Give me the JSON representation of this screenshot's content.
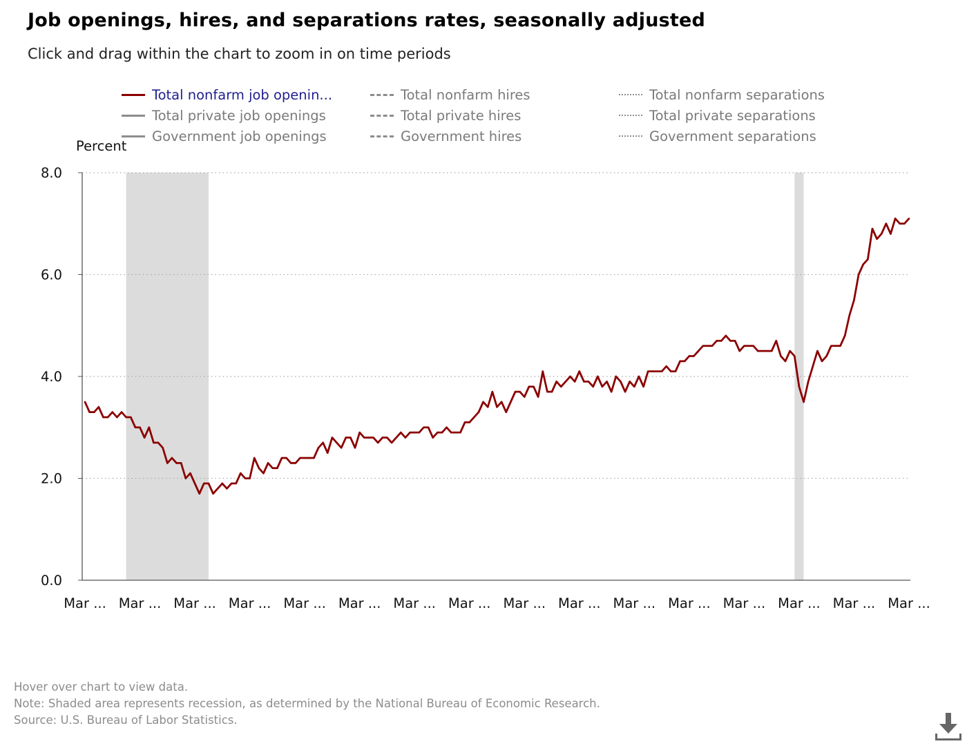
{
  "title": "Job openings, hires, and separations rates, seasonally adjusted",
  "subtitle": "Click and drag within the chart to zoom in on time periods",
  "legend": [
    {
      "label": "Total nonfarm job openin...",
      "style": "solid",
      "active": true,
      "color": "#8b0000"
    },
    {
      "label": "Total nonfarm hires",
      "style": "dashed",
      "active": false,
      "color": "#8c8c8c"
    },
    {
      "label": "Total nonfarm separations",
      "style": "dotted",
      "active": false,
      "color": "#8c8c8c"
    },
    {
      "label": "Total private job openings",
      "style": "solid",
      "active": false,
      "color": "#8c8c8c"
    },
    {
      "label": "Total private hires",
      "style": "dashed",
      "active": false,
      "color": "#8c8c8c"
    },
    {
      "label": "Total private separations",
      "style": "dotted",
      "active": false,
      "color": "#8c8c8c"
    },
    {
      "label": "Government job openings",
      "style": "solid",
      "active": false,
      "color": "#8c8c8c"
    },
    {
      "label": "Government hires",
      "style": "dashed",
      "active": false,
      "color": "#8c8c8c"
    },
    {
      "label": "Government separations",
      "style": "dotted",
      "active": false,
      "color": "#8c8c8c"
    }
  ],
  "notes": {
    "hover": "Hover over chart to view data.",
    "note": "Note: Shaded area represents recession, as determined by the National Bureau of Economic Research.",
    "source": "Source: U.S. Bureau of Labor Statistics."
  },
  "icons": {
    "download": "download-icon"
  },
  "chart_data": {
    "type": "line",
    "ylabel": "Percent",
    "xlabel": "",
    "ylim": [
      0,
      8
    ],
    "yticks": [
      0,
      2,
      4,
      6,
      8
    ],
    "ytick_labels": [
      "0.0",
      "2.0",
      "4.0",
      "6.0",
      "8.0"
    ],
    "xtick_labels": [
      "Mar ...",
      "Mar ...",
      "Mar ...",
      "Mar ...",
      "Mar ...",
      "Mar ...",
      "Mar ...",
      "Mar ...",
      "Mar ...",
      "Mar ...",
      "Mar ...",
      "Mar ...",
      "Mar ...",
      "Mar ...",
      "Mar ...",
      "Mar ..."
    ],
    "x_start_index": 0,
    "x_end_index": 180,
    "grid": "horizontal-dotted",
    "recessions": [
      [
        9,
        27
      ],
      [
        155,
        157
      ]
    ],
    "series": [
      {
        "name": "Total nonfarm job openin...",
        "color": "#8b0000",
        "values": [
          3.5,
          3.3,
          3.3,
          3.4,
          3.2,
          3.2,
          3.3,
          3.2,
          3.3,
          3.2,
          3.2,
          3.0,
          3.0,
          2.8,
          3.0,
          2.7,
          2.7,
          2.6,
          2.3,
          2.4,
          2.3,
          2.3,
          2.0,
          2.1,
          1.9,
          1.7,
          1.9,
          1.9,
          1.7,
          1.8,
          1.9,
          1.8,
          1.9,
          1.9,
          2.1,
          2.0,
          2.0,
          2.4,
          2.2,
          2.1,
          2.3,
          2.2,
          2.2,
          2.4,
          2.4,
          2.3,
          2.3,
          2.4,
          2.4,
          2.4,
          2.4,
          2.6,
          2.7,
          2.5,
          2.8,
          2.7,
          2.6,
          2.8,
          2.8,
          2.6,
          2.9,
          2.8,
          2.8,
          2.8,
          2.7,
          2.8,
          2.8,
          2.7,
          2.8,
          2.9,
          2.8,
          2.9,
          2.9,
          2.9,
          3.0,
          3.0,
          2.8,
          2.9,
          2.9,
          3.0,
          2.9,
          2.9,
          2.9,
          3.1,
          3.1,
          3.2,
          3.3,
          3.5,
          3.4,
          3.7,
          3.4,
          3.5,
          3.3,
          3.5,
          3.7,
          3.7,
          3.6,
          3.8,
          3.8,
          3.6,
          4.1,
          3.7,
          3.7,
          3.9,
          3.8,
          3.9,
          4.0,
          3.9,
          4.1,
          3.9,
          3.9,
          3.8,
          4.0,
          3.8,
          3.9,
          3.7,
          4.0,
          3.9,
          3.7,
          3.9,
          3.8,
          4.0,
          3.8,
          4.1,
          4.1,
          4.1,
          4.1,
          4.2,
          4.1,
          4.1,
          4.3,
          4.3,
          4.4,
          4.4,
          4.5,
          4.6,
          4.6,
          4.6,
          4.7,
          4.7,
          4.8,
          4.7,
          4.7,
          4.5,
          4.6,
          4.6,
          4.6,
          4.5,
          4.5,
          4.5,
          4.5,
          4.7,
          4.4,
          4.3,
          4.5,
          4.4,
          3.8,
          3.5,
          3.9,
          4.2,
          4.5,
          4.3,
          4.4,
          4.6,
          4.6,
          4.6,
          4.8,
          5.2,
          5.5,
          6.0,
          6.2,
          6.3,
          6.9,
          6.7,
          6.8,
          7.0,
          6.8,
          7.1,
          7.0,
          7.0,
          7.1
        ]
      }
    ]
  }
}
